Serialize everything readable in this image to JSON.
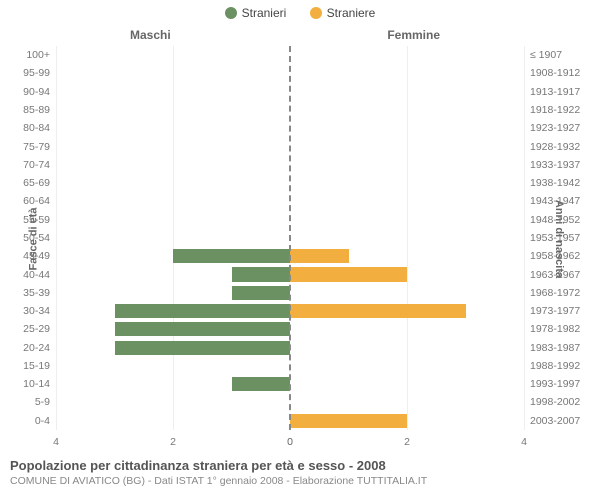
{
  "chart": {
    "type": "population-pyramid",
    "legend": {
      "left": {
        "label": "Stranieri",
        "color": "#6b9162"
      },
      "right": {
        "label": "Straniere",
        "color": "#f2ae3e"
      }
    },
    "headings": {
      "left": "Maschi",
      "right": "Femmine"
    },
    "axis_titles": {
      "left": "Fasce di età",
      "right": "Anni di nascita"
    },
    "x": {
      "max": 4,
      "ticks": [
        0,
        2,
        4
      ]
    },
    "grid_color": "#eeeeee",
    "center_line_color": "#888888",
    "background_color": "#ffffff",
    "tick_font_color": "#777777",
    "rows": [
      {
        "age": "100+",
        "birth": "≤ 1907",
        "m": 0,
        "f": 0
      },
      {
        "age": "95-99",
        "birth": "1908-1912",
        "m": 0,
        "f": 0
      },
      {
        "age": "90-94",
        "birth": "1913-1917",
        "m": 0,
        "f": 0
      },
      {
        "age": "85-89",
        "birth": "1918-1922",
        "m": 0,
        "f": 0
      },
      {
        "age": "80-84",
        "birth": "1923-1927",
        "m": 0,
        "f": 0
      },
      {
        "age": "75-79",
        "birth": "1928-1932",
        "m": 0,
        "f": 0
      },
      {
        "age": "70-74",
        "birth": "1933-1937",
        "m": 0,
        "f": 0
      },
      {
        "age": "65-69",
        "birth": "1938-1942",
        "m": 0,
        "f": 0
      },
      {
        "age": "60-64",
        "birth": "1943-1947",
        "m": 0,
        "f": 0
      },
      {
        "age": "55-59",
        "birth": "1948-1952",
        "m": 0,
        "f": 0
      },
      {
        "age": "50-54",
        "birth": "1953-1957",
        "m": 0,
        "f": 0
      },
      {
        "age": "45-49",
        "birth": "1958-1962",
        "m": 2,
        "f": 1
      },
      {
        "age": "40-44",
        "birth": "1963-1967",
        "m": 1,
        "f": 2
      },
      {
        "age": "35-39",
        "birth": "1968-1972",
        "m": 1,
        "f": 0
      },
      {
        "age": "30-34",
        "birth": "1973-1977",
        "m": 3,
        "f": 3
      },
      {
        "age": "25-29",
        "birth": "1978-1982",
        "m": 3,
        "f": 0
      },
      {
        "age": "20-24",
        "birth": "1983-1987",
        "m": 3,
        "f": 0
      },
      {
        "age": "15-19",
        "birth": "1988-1992",
        "m": 0,
        "f": 0
      },
      {
        "age": "10-14",
        "birth": "1993-1997",
        "m": 1,
        "f": 0
      },
      {
        "age": "5-9",
        "birth": "1998-2002",
        "m": 0,
        "f": 0
      },
      {
        "age": "0-4",
        "birth": "2003-2007",
        "m": 0,
        "f": 2
      }
    ]
  },
  "footer": {
    "title": "Popolazione per cittadinanza straniera per età e sesso - 2008",
    "subtitle": "COMUNE DI AVIATICO (BG) - Dati ISTAT 1° gennaio 2008 - Elaborazione TUTTITALIA.IT"
  }
}
